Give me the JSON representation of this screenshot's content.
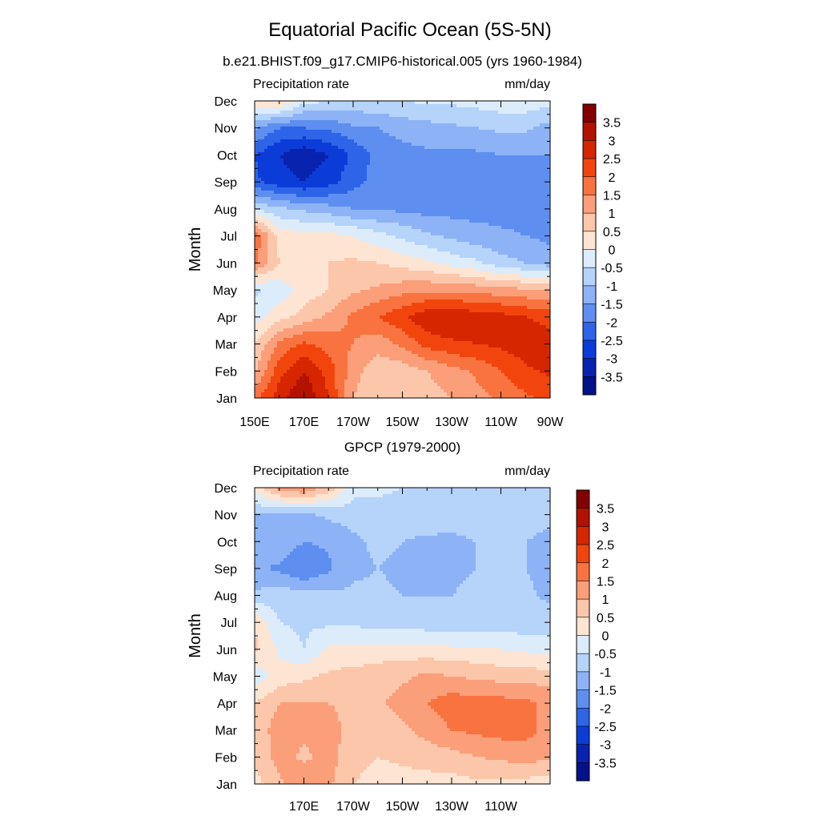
{
  "figure": {
    "title": "Equatorial Pacific Ocean (5S-5N)"
  },
  "colorbar": {
    "labels": [
      "3.5",
      "3",
      "2.5",
      "2",
      "1.5",
      "1",
      "0.5",
      "0",
      "-0.5",
      "-1",
      "-1.5",
      "-2",
      "-2.5",
      "-3",
      "-3.5"
    ],
    "colors": [
      "#820000",
      "#B31200",
      "#D52600",
      "#F1450D",
      "#F8733F",
      "#FB9E7A",
      "#FCC6AB",
      "#FEE4D2",
      "#DCECFB",
      "#B6D3FA",
      "#8DB3F6",
      "#5E8FF0",
      "#2E64E8",
      "#0C3CD8",
      "#0823AF",
      "#04118A"
    ]
  },
  "chart_data": [
    {
      "type": "heatmap",
      "title": "b.e21.BHIST.f09_g17.CMIP6-historical.005 (yrs 1960-1984)",
      "left_string": "Precipitation rate",
      "right_string": "mm/day",
      "ylabel": "Month",
      "xlabel": "",
      "x_values": [
        "150E",
        "160E",
        "170E",
        "180",
        "170W",
        "160W",
        "150W",
        "140W",
        "130W",
        "120W",
        "110W",
        "100W",
        "90W"
      ],
      "x_tick_labels": [
        "150E",
        "170E",
        "170W",
        "150W",
        "130W",
        "110W",
        "90W"
      ],
      "y_tick_labels": [
        "Jan",
        "Feb",
        "Mar",
        "Apr",
        "May",
        "Jun",
        "Jul",
        "Aug",
        "Sep",
        "Oct",
        "Nov",
        "Dec"
      ],
      "colorbar_labels": [
        "3.5",
        "3",
        "2.5",
        "2",
        "1.5",
        "1",
        "0.5",
        "0",
        "-0.5",
        "-1",
        "-1.5",
        "-2",
        "-2.5",
        "-3",
        "-3.5"
      ],
      "levels": [
        -3.5,
        -3,
        -2.5,
        -2,
        -1.5,
        -1,
        -0.5,
        0,
        0.5,
        1,
        1.5,
        2,
        2.5,
        3,
        3.5
      ],
      "z": [
        [
          1.8,
          2.8,
          3.5,
          2.5,
          1.0,
          0.6,
          0.6,
          0.8,
          1.0,
          1.3,
          1.6,
          1.9,
          2.2
        ],
        [
          0.9,
          2.3,
          3.0,
          2.3,
          1.2,
          0.7,
          0.7,
          1.0,
          1.3,
          1.6,
          2.0,
          2.4,
          2.6
        ],
        [
          0.5,
          1.6,
          2.1,
          1.8,
          1.5,
          1.2,
          1.6,
          2.2,
          2.4,
          2.5,
          2.6,
          2.8,
          2.6
        ],
        [
          -0.2,
          0.3,
          0.7,
          1.1,
          1.6,
          2.0,
          2.4,
          2.9,
          3.0,
          2.8,
          2.7,
          2.5,
          2.4
        ],
        [
          -0.6,
          -0.3,
          0.2,
          0.5,
          0.9,
          1.1,
          1.3,
          1.4,
          1.4,
          1.3,
          1.2,
          1.1,
          1.0
        ],
        [
          1.6,
          0.5,
          0.4,
          0.5,
          0.6,
          0.5,
          0.3,
          0.1,
          -0.2,
          -0.4,
          -0.8,
          -1.0,
          -1.3
        ],
        [
          1.9,
          0.3,
          0.2,
          0.2,
          0.0,
          -0.3,
          -0.6,
          -0.9,
          -1.1,
          -1.3,
          -1.4,
          -1.5,
          -1.6
        ],
        [
          -0.5,
          -0.9,
          -1.1,
          -1.3,
          -1.5,
          -1.6,
          -1.6,
          -1.7,
          -1.7,
          -1.7,
          -1.7,
          -1.7,
          -1.6
        ],
        [
          -2.4,
          -2.8,
          -3.0,
          -2.7,
          -2.2,
          -1.8,
          -1.7,
          -1.7,
          -1.7,
          -1.7,
          -1.6,
          -1.6,
          -1.6
        ],
        [
          -2.5,
          -3.0,
          -3.4,
          -3.0,
          -2.4,
          -1.8,
          -1.7,
          -1.6,
          -1.6,
          -1.6,
          -1.5,
          -1.5,
          -1.5
        ],
        [
          -1.4,
          -2.0,
          -2.0,
          -1.9,
          -1.6,
          -1.5,
          -1.3,
          -1.2,
          -1.1,
          -1.0,
          -0.9,
          -0.9,
          -1.2
        ],
        [
          0.4,
          0.6,
          -0.3,
          -0.5,
          -0.6,
          -0.6,
          -0.5,
          -0.4,
          -0.4,
          -0.3,
          -0.2,
          -0.2,
          -0.3
        ]
      ]
    },
    {
      "type": "heatmap",
      "title": "GPCP (1979-2000)",
      "left_string": "Precipitation rate",
      "right_string": "mm/day",
      "ylabel": "Month",
      "xlabel": "",
      "x_values": [
        "150E",
        "160E",
        "170E",
        "180",
        "170W",
        "160W",
        "150W",
        "140W",
        "130W",
        "120W",
        "110W",
        "100W",
        "90W"
      ],
      "x_tick_labels": [
        "170E",
        "170W",
        "150W",
        "130W",
        "110W"
      ],
      "y_tick_labels": [
        "Jan",
        "Feb",
        "Mar",
        "Apr",
        "May",
        "Jun",
        "Jul",
        "Aug",
        "Sep",
        "Oct",
        "Nov",
        "Dec"
      ],
      "colorbar_labels": [
        "3.5",
        "3",
        "2.5",
        "2",
        "1.5",
        "1",
        "0.5",
        "0",
        "-0.5",
        "-1",
        "-1.5",
        "-2",
        "-2.5",
        "-3",
        "-3.5"
      ],
      "levels": [
        -3.5,
        -3,
        -2.5,
        -2,
        -1.5,
        -1,
        -0.5,
        0,
        0.5,
        1,
        1.5,
        2,
        2.5,
        3,
        3.5
      ],
      "z": [
        [
          0.3,
          0.9,
          1.4,
          1.1,
          0.5,
          0.3,
          0.3,
          0.3,
          0.3,
          0.4,
          0.4,
          0.3,
          0.2
        ],
        [
          0.6,
          1.2,
          0.9,
          1.2,
          0.7,
          0.5,
          0.6,
          0.7,
          0.8,
          1.0,
          1.1,
          1.2,
          1.1
        ],
        [
          0.6,
          1.3,
          1.1,
          1.2,
          0.8,
          0.7,
          0.9,
          1.2,
          1.5,
          1.6,
          1.7,
          1.7,
          1.3
        ],
        [
          0.5,
          1.0,
          1.0,
          1.0,
          0.9,
          0.9,
          1.2,
          1.5,
          1.8,
          1.7,
          1.7,
          1.6,
          1.4
        ],
        [
          -0.3,
          0.2,
          0.4,
          0.6,
          0.7,
          0.8,
          0.9,
          1.1,
          1.0,
          0.9,
          0.8,
          0.8,
          0.7
        ],
        [
          0.6,
          -0.1,
          -0.5,
          0.1,
          0.1,
          0.2,
          0.2,
          0.2,
          0.1,
          0.1,
          0.0,
          -0.1,
          -0.2
        ],
        [
          0.5,
          -0.5,
          -0.6,
          -0.6,
          -0.6,
          -0.7,
          -0.7,
          -0.8,
          -0.8,
          -0.8,
          -0.8,
          -0.8,
          -0.8
        ],
        [
          -0.9,
          -0.7,
          -0.8,
          -0.9,
          -0.9,
          -0.9,
          -1.0,
          -1.0,
          -1.0,
          -0.9,
          -0.8,
          -0.9,
          -1.1
        ],
        [
          -1.4,
          -1.6,
          -2.0,
          -1.6,
          -1.1,
          -1.0,
          -1.1,
          -1.1,
          -1.1,
          -1.0,
          -0.9,
          -1.0,
          -1.2
        ],
        [
          -1.2,
          -1.1,
          -1.5,
          -1.4,
          -1.1,
          -0.9,
          -1.0,
          -1.1,
          -1.1,
          -1.0,
          -0.8,
          -1.0,
          -1.2
        ],
        [
          -1.0,
          -1.1,
          -1.1,
          -0.9,
          -0.8,
          -0.7,
          -0.7,
          -0.7,
          -0.8,
          -0.7,
          -0.7,
          -0.7,
          -0.8
        ],
        [
          0.2,
          1.2,
          1.5,
          0.8,
          -0.3,
          -0.4,
          -0.5,
          -0.6,
          -0.6,
          -0.5,
          -0.5,
          -0.5,
          -0.5
        ]
      ]
    }
  ]
}
